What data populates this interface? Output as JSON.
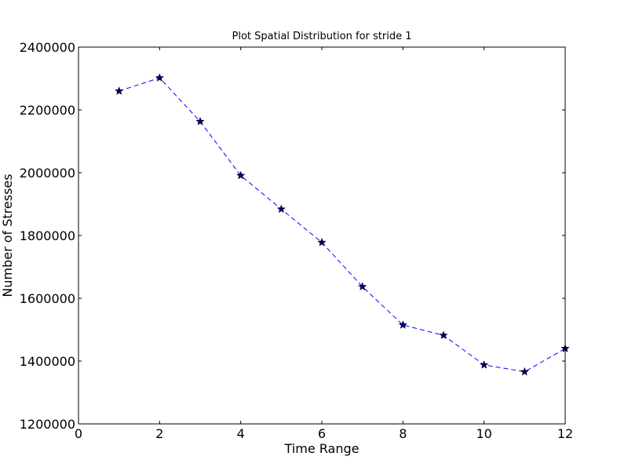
{
  "chart_data": {
    "type": "line",
    "title": "Plot Spatial Distribution for stride 1",
    "xlabel": "Time Range",
    "ylabel": "Number of Stresses",
    "xlim": [
      0,
      12
    ],
    "ylim": [
      1200000,
      2400000
    ],
    "x_ticks": [
      "0",
      "2",
      "4",
      "6",
      "8",
      "10",
      "12"
    ],
    "x_tick_values": [
      0,
      2,
      4,
      6,
      8,
      10,
      12
    ],
    "y_ticks": [
      "1200000",
      "1400000",
      "1600000",
      "1800000",
      "2000000",
      "2200000",
      "2400000"
    ],
    "y_tick_values": [
      1200000,
      1400000,
      1600000,
      1800000,
      2000000,
      2200000,
      2400000
    ],
    "grid": false,
    "series": [
      {
        "x": [
          1,
          2,
          3,
          4,
          5,
          6,
          7,
          8,
          9,
          10,
          11,
          12
        ],
        "values": [
          2260000,
          2302000,
          2163000,
          1991000,
          1884000,
          1778000,
          1637000,
          1515000,
          1482000,
          1388000,
          1366000,
          1440000
        ],
        "color": "#0000ff",
        "marker_color": "#000080",
        "line_style": "dashed",
        "marker": "star"
      }
    ]
  }
}
